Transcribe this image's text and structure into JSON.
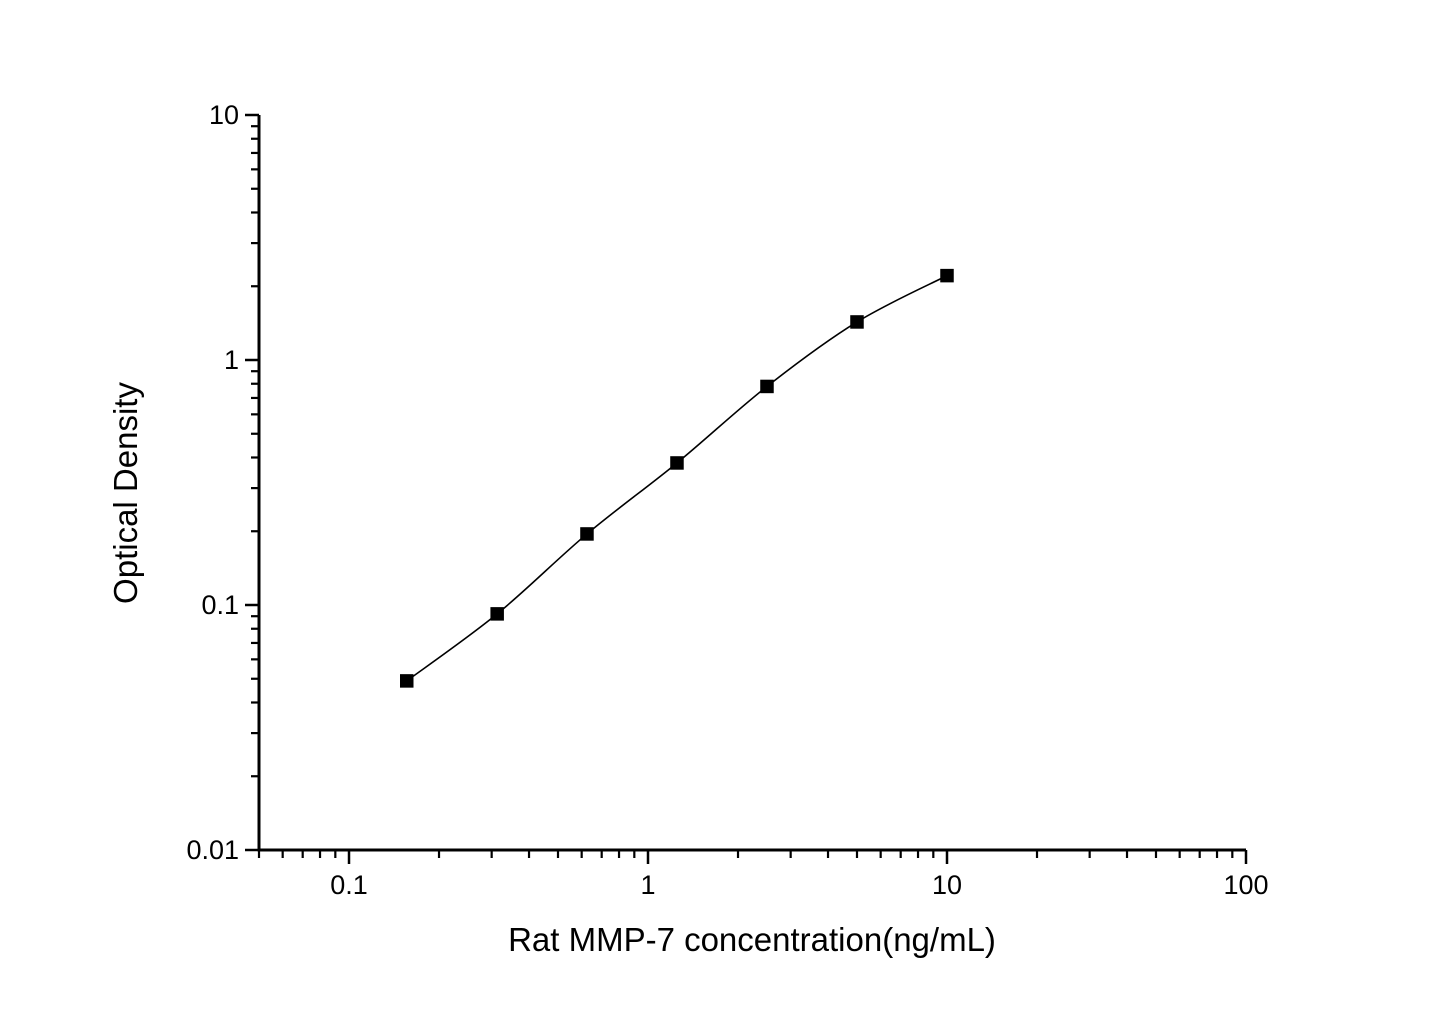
{
  "chart_data": {
    "type": "line",
    "title": "",
    "xlabel": "Rat MMP-7 concentration(ng/mL)",
    "ylabel": "Optical Density",
    "x_scale": "log",
    "y_scale": "log",
    "xlim": [
      0.05,
      100
    ],
    "ylim": [
      0.01,
      10
    ],
    "x_major_ticks": [
      0.1,
      1,
      10,
      100
    ],
    "x_tick_labels": [
      "0.1",
      "1",
      "10",
      "100"
    ],
    "y_major_ticks": [
      0.01,
      0.1,
      1,
      10
    ],
    "y_tick_labels": [
      "0.01",
      "0.1",
      "1",
      "10"
    ],
    "grid": false,
    "legend": false,
    "background_color": "#ffffff",
    "axis_color": "#000000",
    "series": [
      {
        "marker": "filled-square",
        "marker_color": "#000000",
        "line_color": "#000000",
        "x": [
          0.156,
          0.313,
          0.625,
          1.25,
          2.5,
          5,
          10
        ],
        "y": [
          0.049,
          0.092,
          0.195,
          0.38,
          0.78,
          1.43,
          2.21
        ]
      }
    ]
  }
}
